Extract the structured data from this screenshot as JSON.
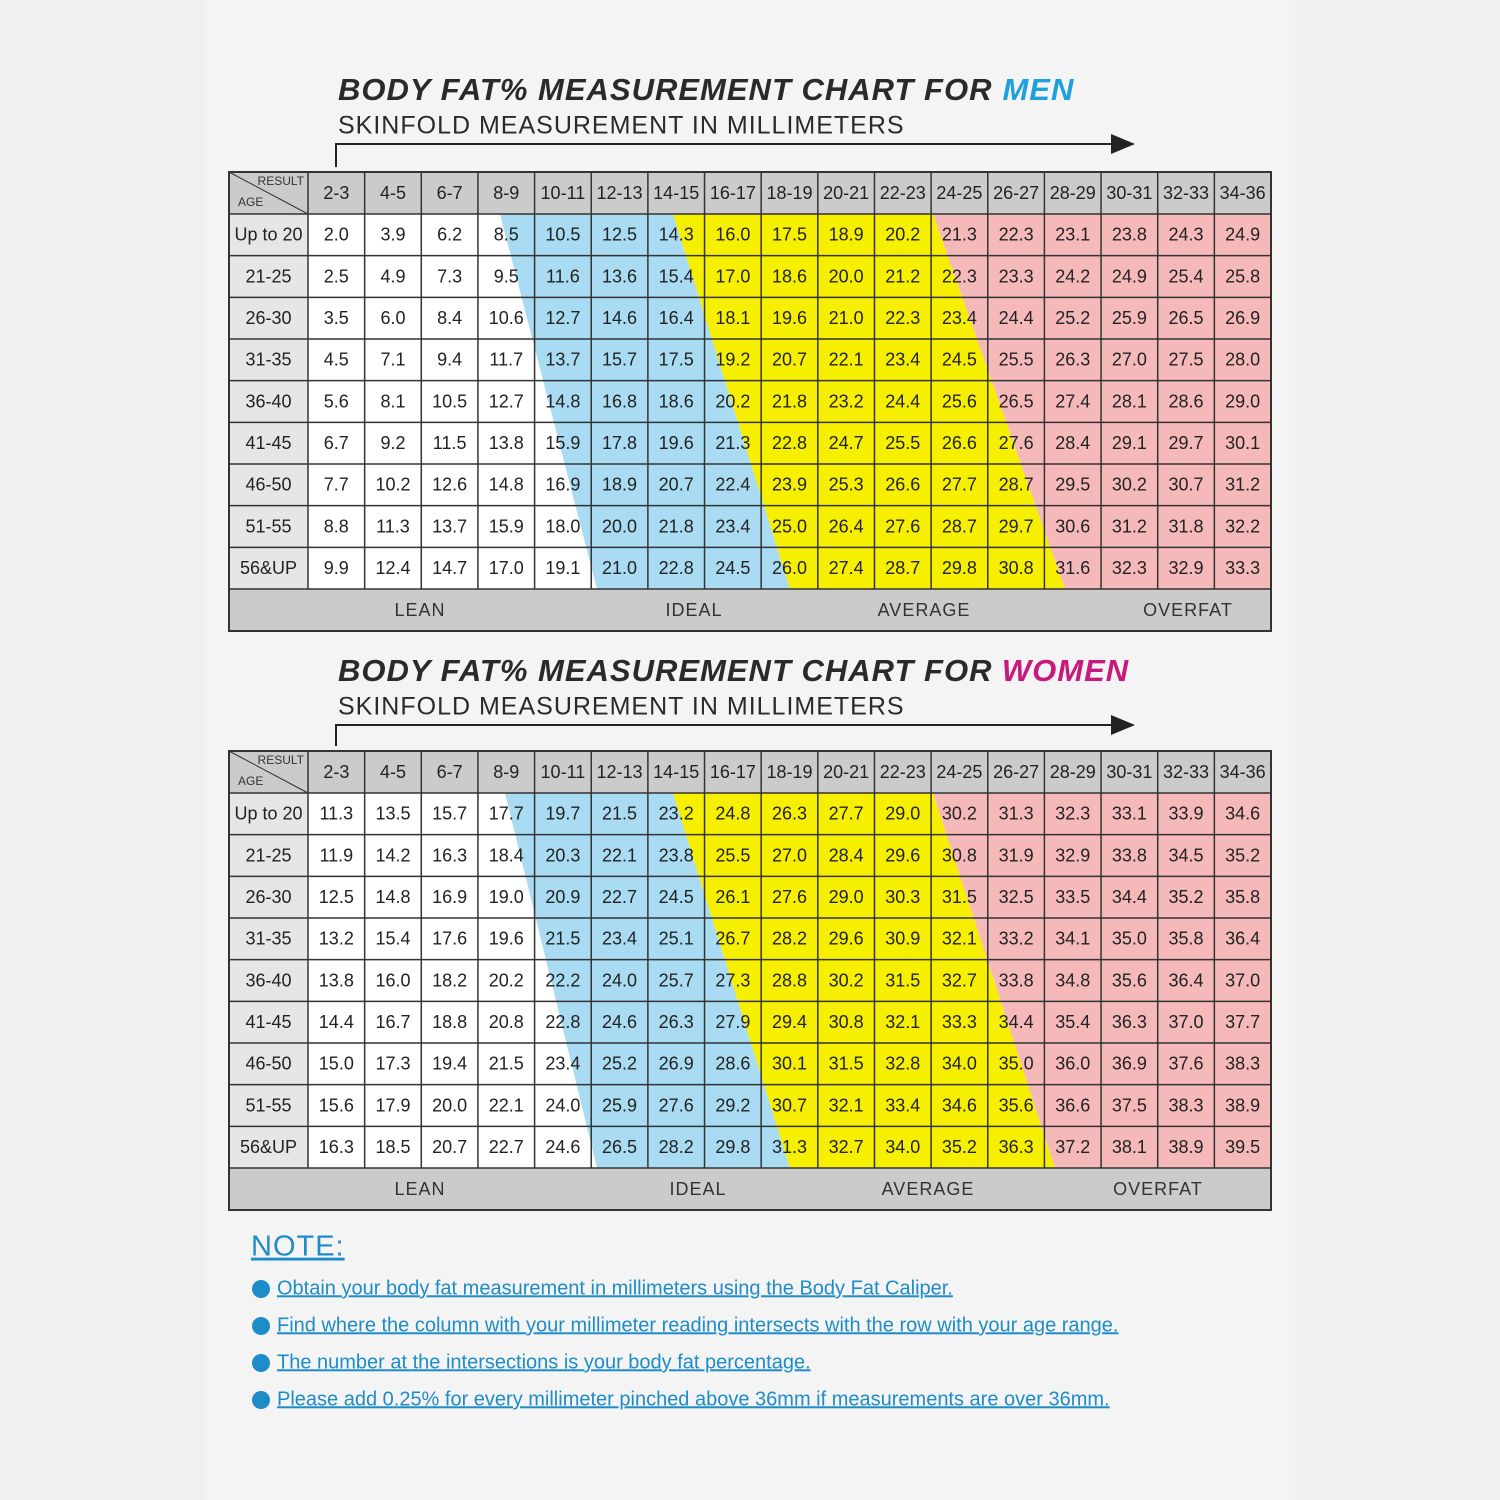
{
  "charts": [
    {
      "title": "BODY FAT% MEASUREMENT CHART FOR",
      "highlight": "MEN",
      "highlight_color": "#1ea0dc",
      "subtitle": "SKINFOLD MEASUREMENT IN MILLIMETERS",
      "corner": {
        "result": "RESULT",
        "age": "AGE"
      },
      "columns": [
        "2-3",
        "4-5",
        "6-7",
        "8-9",
        "10-11",
        "12-13",
        "14-15",
        "16-17",
        "18-19",
        "20-21",
        "22-23",
        "24-25",
        "26-27",
        "28-29",
        "30-31",
        "32-33",
        "34-36"
      ],
      "rows": [
        {
          "age": "Up to 20",
          "values": [
            "2.0",
            "3.9",
            "6.2",
            "8.5",
            "10.5",
            "12.5",
            "14.3",
            "16.0",
            "17.5",
            "18.9",
            "20.2",
            "21.3",
            "22.3",
            "23.1",
            "23.8",
            "24.3",
            "24.9"
          ]
        },
        {
          "age": "21-25",
          "values": [
            "2.5",
            "4.9",
            "7.3",
            "9.5",
            "11.6",
            "13.6",
            "15.4",
            "17.0",
            "18.6",
            "20.0",
            "21.2",
            "22.3",
            "23.3",
            "24.2",
            "24.9",
            "25.4",
            "25.8"
          ]
        },
        {
          "age": "26-30",
          "values": [
            "3.5",
            "6.0",
            "8.4",
            "10.6",
            "12.7",
            "14.6",
            "16.4",
            "18.1",
            "19.6",
            "21.0",
            "22.3",
            "23.4",
            "24.4",
            "25.2",
            "25.9",
            "26.5",
            "26.9"
          ]
        },
        {
          "age": "31-35",
          "values": [
            "4.5",
            "7.1",
            "9.4",
            "11.7",
            "13.7",
            "15.7",
            "17.5",
            "19.2",
            "20.7",
            "22.1",
            "23.4",
            "24.5",
            "25.5",
            "26.3",
            "27.0",
            "27.5",
            "28.0"
          ]
        },
        {
          "age": "36-40",
          "values": [
            "5.6",
            "8.1",
            "10.5",
            "12.7",
            "14.8",
            "16.8",
            "18.6",
            "20.2",
            "21.8",
            "23.2",
            "24.4",
            "25.6",
            "26.5",
            "27.4",
            "28.1",
            "28.6",
            "29.0"
          ]
        },
        {
          "age": "41-45",
          "values": [
            "6.7",
            "9.2",
            "11.5",
            "13.8",
            "15.9",
            "17.8",
            "19.6",
            "21.3",
            "22.8",
            "24.7",
            "25.5",
            "26.6",
            "27.6",
            "28.4",
            "29.1",
            "29.7",
            "30.1"
          ]
        },
        {
          "age": "46-50",
          "values": [
            "7.7",
            "10.2",
            "12.6",
            "14.8",
            "16.9",
            "18.9",
            "20.7",
            "22.4",
            "23.9",
            "25.3",
            "26.6",
            "27.7",
            "28.7",
            "29.5",
            "30.2",
            "30.7",
            "31.2"
          ]
        },
        {
          "age": "51-55",
          "values": [
            "8.8",
            "11.3",
            "13.7",
            "15.9",
            "18.0",
            "20.0",
            "21.8",
            "23.4",
            "25.0",
            "26.4",
            "27.6",
            "28.7",
            "29.7",
            "30.6",
            "31.2",
            "31.8",
            "32.2"
          ]
        },
        {
          "age": "56&UP",
          "values": [
            "9.9",
            "12.4",
            "14.7",
            "17.0",
            "19.1",
            "21.0",
            "22.8",
            "24.5",
            "26.0",
            "27.4",
            "28.7",
            "29.8",
            "30.8",
            "31.6",
            "32.3",
            "32.9",
            "33.3"
          ]
        }
      ],
      "zones": [
        "LEAN",
        "IDEAL",
        "AVERAGE",
        "OVERFAT"
      ]
    },
    {
      "title": "BODY FAT% MEASUREMENT CHART FOR",
      "highlight": "WOMEN",
      "highlight_color": "#c8197d",
      "subtitle": "SKINFOLD MEASUREMENT IN MILLIMETERS",
      "corner": {
        "result": "RESULT",
        "age": "AGE"
      },
      "columns": [
        "2-3",
        "4-5",
        "6-7",
        "8-9",
        "10-11",
        "12-13",
        "14-15",
        "16-17",
        "18-19",
        "20-21",
        "22-23",
        "24-25",
        "26-27",
        "28-29",
        "30-31",
        "32-33",
        "34-36"
      ],
      "rows": [
        {
          "age": "Up to 20",
          "values": [
            "11.3",
            "13.5",
            "15.7",
            "17.7",
            "19.7",
            "21.5",
            "23.2",
            "24.8",
            "26.3",
            "27.7",
            "29.0",
            "30.2",
            "31.3",
            "32.3",
            "33.1",
            "33.9",
            "34.6"
          ]
        },
        {
          "age": "21-25",
          "values": [
            "11.9",
            "14.2",
            "16.3",
            "18.4",
            "20.3",
            "22.1",
            "23.8",
            "25.5",
            "27.0",
            "28.4",
            "29.6",
            "30.8",
            "31.9",
            "32.9",
            "33.8",
            "34.5",
            "35.2"
          ]
        },
        {
          "age": "26-30",
          "values": [
            "12.5",
            "14.8",
            "16.9",
            "19.0",
            "20.9",
            "22.7",
            "24.5",
            "26.1",
            "27.6",
            "29.0",
            "30.3",
            "31.5",
            "32.5",
            "33.5",
            "34.4",
            "35.2",
            "35.8"
          ]
        },
        {
          "age": "31-35",
          "values": [
            "13.2",
            "15.4",
            "17.6",
            "19.6",
            "21.5",
            "23.4",
            "25.1",
            "26.7",
            "28.2",
            "29.6",
            "30.9",
            "32.1",
            "33.2",
            "34.1",
            "35.0",
            "35.8",
            "36.4"
          ]
        },
        {
          "age": "36-40",
          "values": [
            "13.8",
            "16.0",
            "18.2",
            "20.2",
            "22.2",
            "24.0",
            "25.7",
            "27.3",
            "28.8",
            "30.2",
            "31.5",
            "32.7",
            "33.8",
            "34.8",
            "35.6",
            "36.4",
            "37.0"
          ]
        },
        {
          "age": "41-45",
          "values": [
            "14.4",
            "16.7",
            "18.8",
            "20.8",
            "22.8",
            "24.6",
            "26.3",
            "27.9",
            "29.4",
            "30.8",
            "32.1",
            "33.3",
            "34.4",
            "35.4",
            "36.3",
            "37.0",
            "37.7"
          ]
        },
        {
          "age": "46-50",
          "values": [
            "15.0",
            "17.3",
            "19.4",
            "21.5",
            "23.4",
            "25.2",
            "26.9",
            "28.6",
            "30.1",
            "31.5",
            "32.8",
            "34.0",
            "35.0",
            "36.0",
            "36.9",
            "37.6",
            "38.3"
          ]
        },
        {
          "age": "51-55",
          "values": [
            "15.6",
            "17.9",
            "20.0",
            "22.1",
            "24.0",
            "25.9",
            "27.6",
            "29.2",
            "30.7",
            "32.1",
            "33.4",
            "34.6",
            "35.6",
            "36.6",
            "37.5",
            "38.3",
            "38.9"
          ]
        },
        {
          "age": "56&UP",
          "values": [
            "16.3",
            "18.5",
            "20.7",
            "22.7",
            "24.6",
            "26.5",
            "28.2",
            "29.8",
            "31.3",
            "32.7",
            "34.0",
            "35.2",
            "36.3",
            "37.2",
            "38.1",
            "38.9",
            "39.5"
          ]
        }
      ],
      "zones": [
        "LEAN",
        "IDEAL",
        "AVERAGE",
        "OVERFAT"
      ]
    }
  ],
  "note": {
    "heading": "NOTE:",
    "items": [
      "Obtain your body fat measurement in millimeters using the Body Fat Caliper.",
      "Find where the column with your millimeter reading intersects with the row with your age range.",
      "The number at the intersections is your body fat percentage.",
      "Please add 0.25% for every millimeter pinched above 36mm if measurements are over 36mm."
    ]
  }
}
